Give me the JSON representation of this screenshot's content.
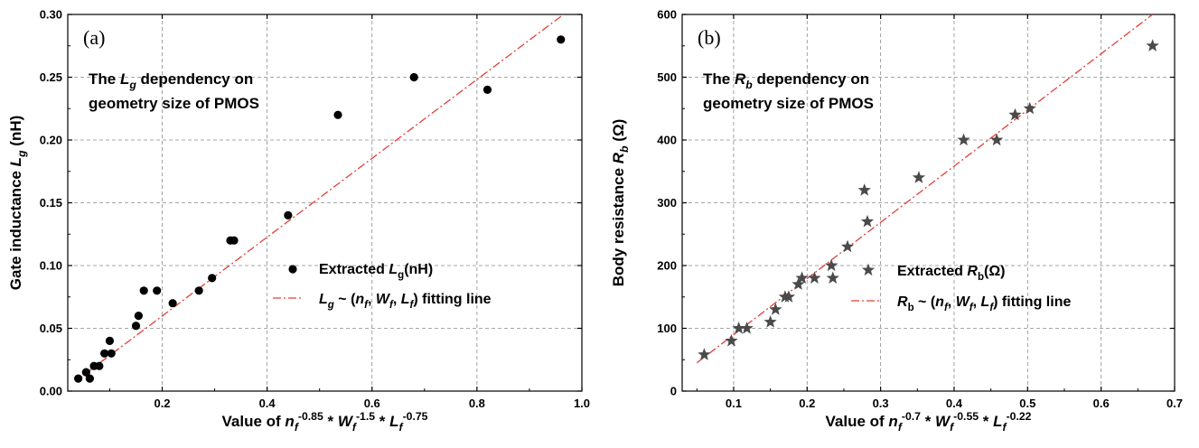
{
  "chart_data": [
    {
      "panel_label": "(a)",
      "type": "scatter",
      "annotation_lines": [
        "The L_g dependency on",
        "geometry size of PMOS"
      ],
      "annotation": {
        "pre": "The ",
        "sym": "L",
        "sub": "g",
        "post": " dependency on",
        "line2": "geometry size of PMOS"
      },
      "xlabel": {
        "pre": "Value of ",
        "base1": "n",
        "sub1": "f",
        "sup1": "-0.85",
        "mid1": " * ",
        "base2": "W",
        "sub2": "f",
        "sup2": "-1.5",
        "mid2": " * ",
        "base3": "L",
        "sub3": "f",
        "sup3": "-0.75"
      },
      "ylabel": {
        "pre": "Gate inductance ",
        "sym": "L",
        "sub": "g",
        "post": " (nH)"
      },
      "xlim": [
        0.02,
        1.0
      ],
      "ylim": [
        0.0,
        0.3
      ],
      "xticks": [
        "0.2",
        "0.4",
        "0.6",
        "0.8",
        "1.0"
      ],
      "yticks": [
        "0.00",
        "0.05",
        "0.10",
        "0.15",
        "0.20",
        "0.25",
        "0.30"
      ],
      "grid": true,
      "legend_position": "center-right",
      "series": [
        {
          "name": "Extracted L_g(nH)",
          "legend": {
            "pre": "Extracted ",
            "sym": "L",
            "sub": "g",
            "post": "(nH)"
          },
          "marker": "circle",
          "color": "#000000",
          "points": [
            [
              0.04,
              0.01
            ],
            [
              0.055,
              0.015
            ],
            [
              0.062,
              0.01
            ],
            [
              0.07,
              0.02
            ],
            [
              0.08,
              0.02
            ],
            [
              0.09,
              0.03
            ],
            [
              0.1,
              0.04
            ],
            [
              0.103,
              0.03
            ],
            [
              0.15,
              0.052
            ],
            [
              0.155,
              0.06
            ],
            [
              0.165,
              0.08
            ],
            [
              0.19,
              0.08
            ],
            [
              0.22,
              0.07
            ],
            [
              0.27,
              0.08
            ],
            [
              0.295,
              0.09
            ],
            [
              0.33,
              0.12
            ],
            [
              0.337,
              0.12
            ],
            [
              0.44,
              0.14
            ],
            [
              0.535,
              0.22
            ],
            [
              0.68,
              0.25
            ],
            [
              0.82,
              0.24
            ],
            [
              0.96,
              0.28
            ]
          ]
        },
        {
          "name": "L_g ~ (n_f, W_f, L_f) fitting line",
          "legend": {
            "sym": "L",
            "sub": "g",
            "post1": " ~ (",
            "a": "n",
            "asub": "f",
            "c1": ", ",
            "b": "W",
            "bsub": "f",
            "c2": ", ",
            "c": "L",
            "csub": "f",
            "post2": ") fitting line"
          },
          "type": "line",
          "style": "dash-dot",
          "color": "#e0403a",
          "x": [
            0.035,
            0.965
          ],
          "y": [
            0.008,
            0.3
          ]
        }
      ]
    },
    {
      "panel_label": "(b)",
      "type": "scatter",
      "annotation": {
        "pre": "The ",
        "sym": "R",
        "sub": "b",
        "post": " dependency on",
        "line2": "geometry size of PMOS"
      },
      "xlabel": {
        "pre": "Value of ",
        "base1": "n",
        "sub1": "f",
        "sup1": "-0.7",
        "mid1": " * ",
        "base2": "W",
        "sub2": "f",
        "sup2": "-0.55",
        "mid2": " * ",
        "base3": "L",
        "sub3": "f",
        "sup3": "-0.22"
      },
      "ylabel": {
        "pre": "Body resistance ",
        "sym": "R",
        "sub": "b",
        "post": " (Ω)"
      },
      "xlim": [
        0.03,
        0.7
      ],
      "ylim": [
        0,
        600
      ],
      "xticks": [
        "0.1",
        "0.2",
        "0.3",
        "0.4",
        "0.5",
        "0.6",
        "0.7"
      ],
      "yticks": [
        "0",
        "100",
        "200",
        "300",
        "400",
        "500",
        "600"
      ],
      "grid": true,
      "legend_position": "center-right",
      "series": [
        {
          "name": "Extracted R_b(Ω)",
          "legend": {
            "pre": "Extracted ",
            "sym": "R",
            "sub": "b",
            "post": "(Ω)"
          },
          "marker": "star",
          "color": "#4a4a4a",
          "points": [
            [
              0.06,
              58
            ],
            [
              0.097,
              80
            ],
            [
              0.107,
              100
            ],
            [
              0.118,
              100
            ],
            [
              0.15,
              110
            ],
            [
              0.157,
              130
            ],
            [
              0.17,
              150
            ],
            [
              0.175,
              150
            ],
            [
              0.188,
              170
            ],
            [
              0.193,
              180
            ],
            [
              0.21,
              180
            ],
            [
              0.233,
              200
            ],
            [
              0.235,
              180
            ],
            [
              0.255,
              230
            ],
            [
              0.278,
              320
            ],
            [
              0.282,
              270
            ],
            [
              0.352,
              340
            ],
            [
              0.413,
              400
            ],
            [
              0.458,
              400
            ],
            [
              0.483,
              440
            ],
            [
              0.503,
              450
            ],
            [
              0.67,
              550
            ]
          ]
        },
        {
          "name": "R_b ~ (n_f, W_f, L_f) fitting line",
          "legend": {
            "sym": "R",
            "sub": "b",
            "post1": " ~ (",
            "a": "n",
            "asub": "f",
            "c1": ", ",
            "b": "W",
            "bsub": "f",
            "c2": ", ",
            "c": "L",
            "csub": "f",
            "post2": ") fitting line"
          },
          "type": "line",
          "style": "dash-dot",
          "color": "#e0403a",
          "x": [
            0.05,
            0.67
          ],
          "y": [
            45,
            600
          ]
        }
      ]
    }
  ]
}
